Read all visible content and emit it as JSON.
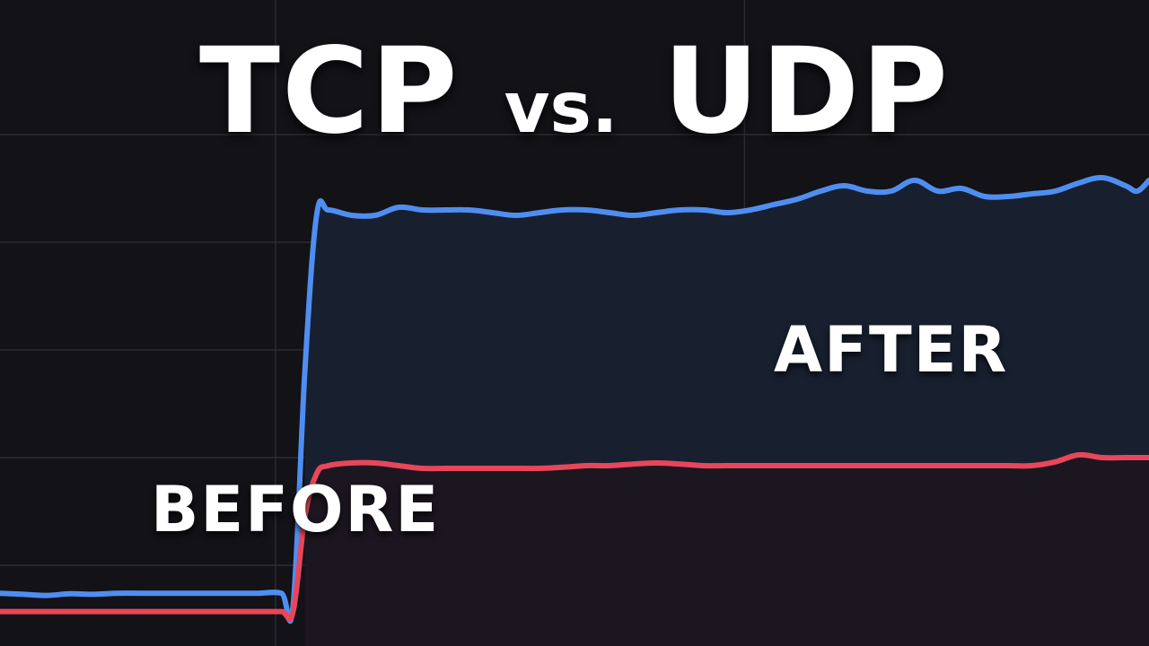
{
  "title": {
    "left": "TCP",
    "middle": "vs.",
    "right": "UDP"
  },
  "chart_data": {
    "type": "line",
    "title": "TCP vs. UDP",
    "xlabel": "",
    "ylabel": "",
    "grid": true,
    "annotations": [
      "BEFORE",
      "AFTER"
    ],
    "x": [
      0,
      2,
      4,
      6,
      8,
      10,
      12,
      14,
      16,
      18,
      20,
      22,
      24,
      25,
      26,
      27,
      28,
      30,
      32,
      34,
      36,
      38,
      40,
      42,
      44,
      46,
      48,
      50,
      52,
      54,
      56,
      58,
      60,
      62,
      64,
      66,
      68,
      70,
      72,
      74,
      76,
      78,
      80,
      82,
      84,
      86,
      88,
      90,
      92,
      94,
      96,
      97,
      98
    ],
    "series": [
      {
        "name": "",
        "color": "#4f8ef0",
        "fill": "#182030",
        "values": [
          0.48,
          0.46,
          0.44,
          0.47,
          0.46,
          0.48,
          0.48,
          0.48,
          0.48,
          0.48,
          0.48,
          0.48,
          0.48,
          0.25,
          4.6,
          7.5,
          7.6,
          7.5,
          7.5,
          7.65,
          7.6,
          7.6,
          7.6,
          7.55,
          7.5,
          7.55,
          7.6,
          7.6,
          7.55,
          7.5,
          7.55,
          7.6,
          7.6,
          7.55,
          7.6,
          7.7,
          7.8,
          7.95,
          8.05,
          7.95,
          7.95,
          8.15,
          7.95,
          8.0,
          7.85,
          7.85,
          7.9,
          7.95,
          8.1,
          8.2,
          8.05,
          7.95,
          8.15
        ]
      },
      {
        "name": "",
        "color": "#e8465a",
        "fill": "#1c1620",
        "values": [
          0.14,
          0.14,
          0.14,
          0.14,
          0.14,
          0.14,
          0.14,
          0.14,
          0.14,
          0.14,
          0.14,
          0.14,
          0.14,
          0.14,
          1.9,
          2.7,
          2.85,
          2.9,
          2.9,
          2.85,
          2.8,
          2.8,
          2.8,
          2.8,
          2.8,
          2.8,
          2.82,
          2.85,
          2.85,
          2.88,
          2.9,
          2.88,
          2.85,
          2.85,
          2.85,
          2.85,
          2.85,
          2.85,
          2.85,
          2.85,
          2.85,
          2.85,
          2.85,
          2.85,
          2.85,
          2.85,
          2.85,
          2.92,
          3.05,
          3.0,
          3.0,
          3.0,
          3.0
        ]
      }
    ],
    "xlim": [
      0,
      98
    ],
    "ylim": [
      -0.5,
      11.5
    ]
  },
  "colors": {
    "background": "#121217",
    "grid": "#2a2c33"
  }
}
